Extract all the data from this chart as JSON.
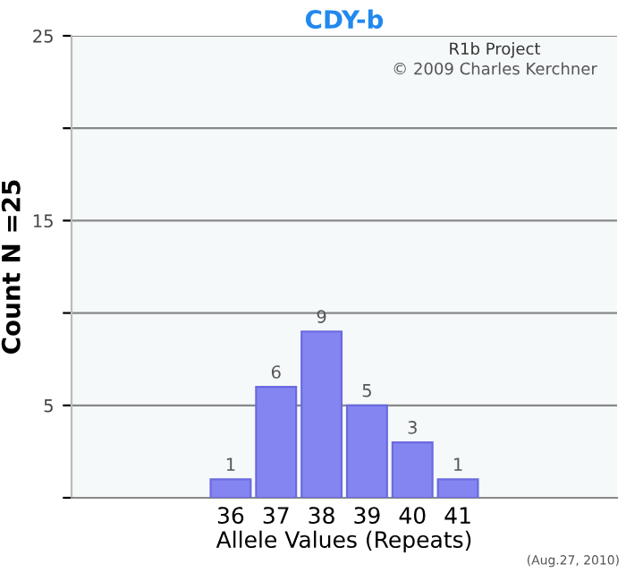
{
  "chart_data": {
    "type": "bar",
    "title": "CDY-b",
    "xlabel": "Allele Values (Repeats)",
    "ylabel": "Count N =25",
    "categories": [
      null,
      null,
      null,
      "36",
      "37",
      "38",
      "39",
      "40",
      "41",
      null,
      null,
      null
    ],
    "values": [
      null,
      null,
      null,
      1,
      6,
      9,
      5,
      3,
      1,
      null,
      null,
      null
    ],
    "color": "#8585f2",
    "ylim": [
      0,
      25
    ],
    "yticks": [
      {
        "value": 0,
        "label": null
      },
      5,
      {
        "value": 10,
        "label": null
      },
      15,
      {
        "value": 20,
        "label": null
      },
      25
    ],
    "grid": "y",
    "data_labels": true,
    "annotations": [
      "R1b Project",
      "© 2009 Charles Kerchner",
      "(Aug.27, 2010)"
    ]
  }
}
